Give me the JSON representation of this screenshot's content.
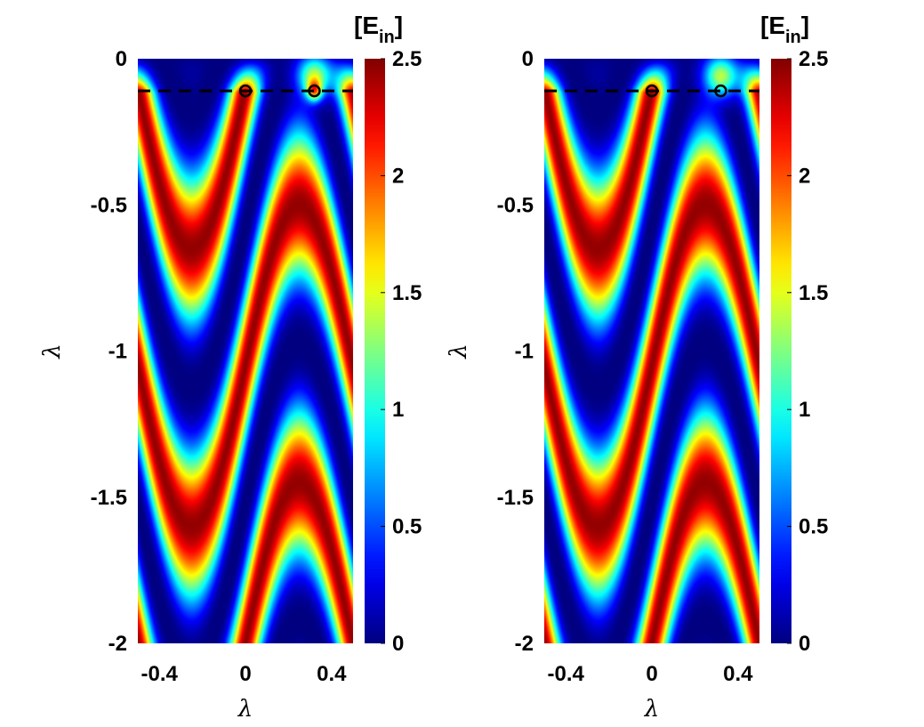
{
  "chart_data": [
    {
      "type": "heatmap",
      "xlabel": "λ",
      "ylabel": "λ",
      "xlim": [
        -0.5,
        0.5
      ],
      "ylim": [
        -2,
        0
      ],
      "x_ticks": [
        "-0.4",
        "0",
        "0.4"
      ],
      "x_tick_values": [
        -0.4,
        0,
        0.4
      ],
      "y_ticks": [
        "0",
        "-0.5",
        "-1",
        "-1.5",
        "-2"
      ],
      "y_tick_values": [
        0,
        -0.5,
        -1,
        -1.5,
        -2
      ],
      "colormap": "jet",
      "colorbar": {
        "title_main": "[E",
        "title_sub": "in",
        "title_close": "]",
        "range": [
          0,
          2.5
        ],
        "ticks": [
          "0",
          "0.5",
          "1",
          "1.5",
          "2",
          "2.5"
        ],
        "tick_values": [
          0,
          0.5,
          1,
          1.5,
          2,
          2.5
        ]
      },
      "dashed_line_y": -0.11,
      "markers": [
        {
          "x": 0.0,
          "y": -0.11
        },
        {
          "x": 0.32,
          "y": -0.11
        }
      ],
      "hotspot": {
        "x": 0.32,
        "y": -0.11,
        "peak": 2.5
      },
      "hotspot_label": "bright spot at marker"
    },
    {
      "type": "heatmap",
      "xlabel": "λ",
      "ylabel": "λ",
      "xlim": [
        -0.5,
        0.5
      ],
      "ylim": [
        -2,
        0
      ],
      "x_ticks": [
        "-0.4",
        "0",
        "0.4"
      ],
      "x_tick_values": [
        -0.4,
        0,
        0.4
      ],
      "y_ticks": [
        "0",
        "-0.5",
        "-1",
        "-1.5",
        "-2"
      ],
      "y_tick_values": [
        0,
        -0.5,
        -1,
        -1.5,
        -2
      ],
      "colormap": "jet",
      "colorbar": {
        "title_main": "[E",
        "title_sub": "in",
        "title_close": "]",
        "range": [
          0,
          2.5
        ],
        "ticks": [
          "0",
          "0.5",
          "1",
          "1.5",
          "2",
          "2.5"
        ],
        "tick_values": [
          0,
          0.5,
          1,
          1.5,
          2,
          2.5
        ]
      },
      "dashed_line_y": -0.11,
      "markers": [
        {
          "x": 0.0,
          "y": -0.11
        },
        {
          "x": 0.32,
          "y": -0.11
        }
      ],
      "hotspot": null
    }
  ]
}
